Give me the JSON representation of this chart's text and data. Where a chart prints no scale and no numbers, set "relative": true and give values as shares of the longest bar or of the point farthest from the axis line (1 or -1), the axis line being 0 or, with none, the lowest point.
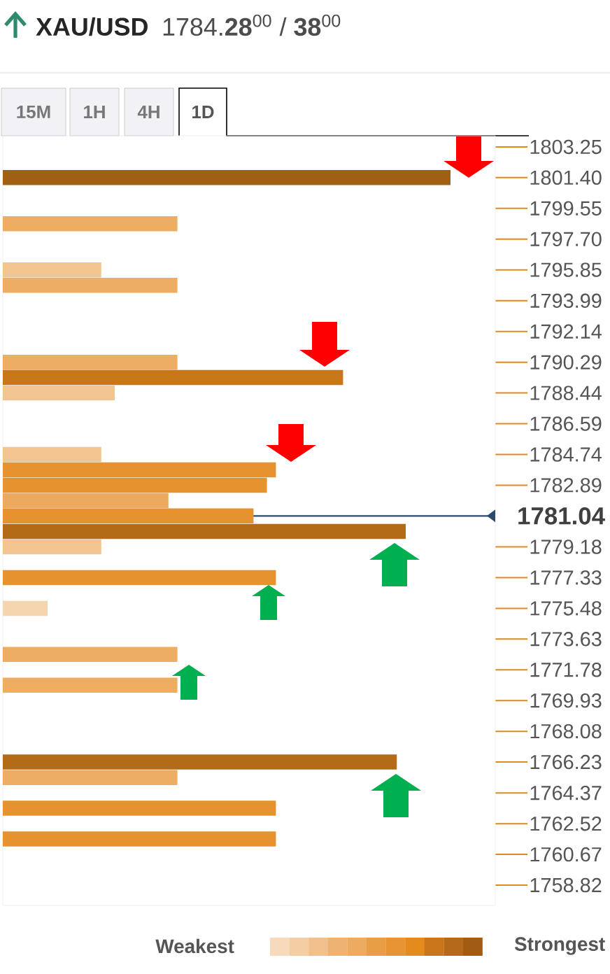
{
  "chart_data": {
    "type": "bar",
    "orientation": "horizontal",
    "relative": true,
    "title": "XAU/USD",
    "subtitle": "1784.**28**$^{00}$ / **38**$^{00}$",
    "x": [
      1801.4,
      1798.63,
      1795.85,
      1794.92,
      1790.29,
      1789.37,
      1788.44,
      1784.74,
      1783.81,
      1782.89,
      1781.96,
      1781.04,
      1780.11,
      1779.18,
      1777.33,
      1775.48,
      1772.71,
      1770.85,
      1766.23,
      1765.3,
      1763.45,
      1761.6
    ],
    "values": [
      1.0,
      0.39,
      0.22,
      0.39,
      0.39,
      0.76,
      0.25,
      0.22,
      0.61,
      0.59,
      0.37,
      0.56,
      0.9,
      0.22,
      0.61,
      0.1,
      0.39,
      0.39,
      0.88,
      0.39,
      0.61,
      0.61
    ],
    "colors": [
      "#a05f12",
      "#edad62",
      "#f2c590",
      "#edad62",
      "#edad62",
      "#c87718",
      "#f2c590",
      "#f2c590",
      "#e5932f",
      "#e5932f",
      "#ebaa60",
      "#e5932f",
      "#b46b18",
      "#f2c590",
      "#e5932f",
      "#f5d5b0",
      "#edad62",
      "#edad62",
      "#b46b18",
      "#edad62",
      "#e5932f",
      "#e5932f"
    ],
    "ylim": [
      1757.6,
      1803.92
    ],
    "yticks": [
      1803.25,
      {
        "value": 1801.4,
        "label": "1801.40"
      },
      1799.55,
      {
        "value": 1797.7,
        "label": "1797.70"
      },
      1795.85,
      1793.99,
      1792.14,
      1790.29,
      1788.44,
      1786.59,
      1784.74,
      1782.89,
      1779.18,
      1777.33,
      1775.48,
      1773.63,
      1771.78,
      1769.93,
      1768.08,
      1766.23,
      1764.37,
      1762.52,
      1760.67,
      1758.82
    ],
    "ref_lines": [
      {
        "axis": "y",
        "value": 1781.04,
        "label": "1781.04",
        "color": "#2d4a6e"
      }
    ],
    "annotations": [
      "15M",
      "1H",
      "4H",
      "1D",
      "Weakest",
      "Strongest"
    ]
  }
}
